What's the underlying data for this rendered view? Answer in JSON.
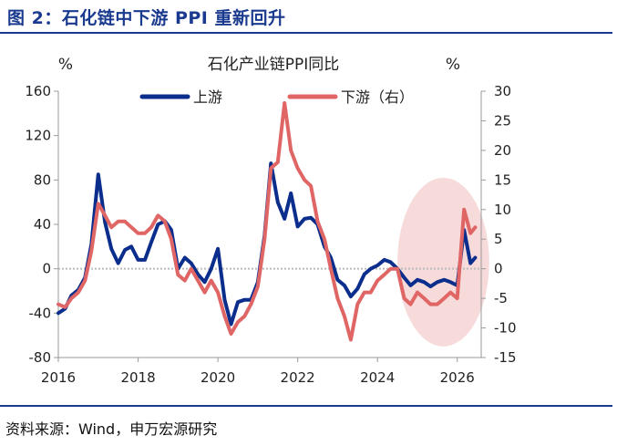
{
  "figure_title": "图 2：石化链中下游 PPI 重新回升",
  "source": "资料来源：Wind，申万宏源研究",
  "colors": {
    "upstream": "#0b2e8c",
    "downstream": "#e06666",
    "highlight": "#f6d5d5",
    "axis": "#999999",
    "text": "#222222",
    "title_blue": "#1a3a8f"
  },
  "chart_data": {
    "type": "line",
    "title": "石化产业链PPI同比",
    "y_left_unit": "%",
    "y_right_unit": "%",
    "y_left_range": [
      -80,
      160
    ],
    "y_left_ticks": [
      -80,
      -40,
      0,
      40,
      80,
      120,
      160
    ],
    "y_right_range": [
      -15,
      30
    ],
    "y_right_ticks": [
      -15,
      -10,
      -5,
      0,
      5,
      10,
      15,
      20,
      25,
      30
    ],
    "x_range": [
      2016,
      2026.6
    ],
    "x_ticks": [
      2016,
      2018,
      2020,
      2022,
      2024,
      2026
    ],
    "legend_position": "top",
    "highlight_region": {
      "x_start": 2024.5,
      "x_end": 2026.8,
      "y_left_start": -70,
      "y_left_end": 82
    },
    "series": [
      {
        "name": "上游",
        "axis": "left",
        "color": "#0b2e8c",
        "points": [
          [
            2016.0,
            -40
          ],
          [
            2016.17,
            -36
          ],
          [
            2016.33,
            -24
          ],
          [
            2016.5,
            -19
          ],
          [
            2016.67,
            -8
          ],
          [
            2016.83,
            22
          ],
          [
            2017.0,
            85
          ],
          [
            2017.17,
            42
          ],
          [
            2017.33,
            18
          ],
          [
            2017.5,
            5
          ],
          [
            2017.67,
            17
          ],
          [
            2017.83,
            20
          ],
          [
            2018.0,
            8
          ],
          [
            2018.17,
            8
          ],
          [
            2018.33,
            24
          ],
          [
            2018.5,
            40
          ],
          [
            2018.67,
            43
          ],
          [
            2018.83,
            35
          ],
          [
            2019.0,
            0
          ],
          [
            2019.17,
            10
          ],
          [
            2019.33,
            5
          ],
          [
            2019.5,
            -5
          ],
          [
            2019.67,
            -12
          ],
          [
            2019.83,
            0
          ],
          [
            2020.0,
            18
          ],
          [
            2020.17,
            -28
          ],
          [
            2020.33,
            -50
          ],
          [
            2020.5,
            -30
          ],
          [
            2020.67,
            -28
          ],
          [
            2020.83,
            -28
          ],
          [
            2021.0,
            -12
          ],
          [
            2021.17,
            30
          ],
          [
            2021.33,
            95
          ],
          [
            2021.5,
            60
          ],
          [
            2021.67,
            45
          ],
          [
            2021.83,
            68
          ],
          [
            2022.0,
            38
          ],
          [
            2022.17,
            45
          ],
          [
            2022.33,
            46
          ],
          [
            2022.5,
            40
          ],
          [
            2022.67,
            20
          ],
          [
            2022.83,
            10
          ],
          [
            2023.0,
            -10
          ],
          [
            2023.17,
            -15
          ],
          [
            2023.33,
            -25
          ],
          [
            2023.5,
            -18
          ],
          [
            2023.67,
            -5
          ],
          [
            2023.83,
            0
          ],
          [
            2024.0,
            3
          ],
          [
            2024.17,
            8
          ],
          [
            2024.33,
            6
          ],
          [
            2024.5,
            0
          ],
          [
            2024.67,
            -8
          ],
          [
            2024.83,
            -15
          ],
          [
            2025.0,
            -10
          ],
          [
            2025.17,
            -12
          ],
          [
            2025.33,
            -16
          ],
          [
            2025.5,
            -12
          ],
          [
            2025.67,
            -10
          ],
          [
            2025.83,
            -12
          ],
          [
            2026.0,
            -15
          ],
          [
            2026.17,
            35
          ],
          [
            2026.33,
            5
          ],
          [
            2026.45,
            10
          ]
        ]
      },
      {
        "name": "下游（右）",
        "axis": "right",
        "color": "#e06666",
        "points": [
          [
            2016.0,
            -6
          ],
          [
            2016.17,
            -6.5
          ],
          [
            2016.33,
            -5
          ],
          [
            2016.5,
            -4
          ],
          [
            2016.67,
            -2
          ],
          [
            2016.83,
            3
          ],
          [
            2017.0,
            11
          ],
          [
            2017.17,
            9
          ],
          [
            2017.33,
            7
          ],
          [
            2017.5,
            8
          ],
          [
            2017.67,
            8
          ],
          [
            2017.83,
            7
          ],
          [
            2018.0,
            6
          ],
          [
            2018.17,
            6
          ],
          [
            2018.33,
            7
          ],
          [
            2018.5,
            9
          ],
          [
            2018.67,
            8
          ],
          [
            2018.83,
            5
          ],
          [
            2019.0,
            -1
          ],
          [
            2019.17,
            -2
          ],
          [
            2019.33,
            0
          ],
          [
            2019.5,
            -2
          ],
          [
            2019.67,
            -4
          ],
          [
            2019.83,
            -2
          ],
          [
            2020.0,
            -4
          ],
          [
            2020.17,
            -8
          ],
          [
            2020.33,
            -11
          ],
          [
            2020.5,
            -9
          ],
          [
            2020.67,
            -8
          ],
          [
            2020.83,
            -6
          ],
          [
            2021.0,
            -3
          ],
          [
            2021.17,
            5
          ],
          [
            2021.33,
            17
          ],
          [
            2021.5,
            18
          ],
          [
            2021.67,
            28
          ],
          [
            2021.83,
            20
          ],
          [
            2022.0,
            17
          ],
          [
            2022.17,
            15
          ],
          [
            2022.33,
            14
          ],
          [
            2022.5,
            8
          ],
          [
            2022.67,
            5
          ],
          [
            2022.83,
            0
          ],
          [
            2023.0,
            -5
          ],
          [
            2023.17,
            -8
          ],
          [
            2023.33,
            -12
          ],
          [
            2023.5,
            -6
          ],
          [
            2023.67,
            -4
          ],
          [
            2023.83,
            -4
          ],
          [
            2024.0,
            -2
          ],
          [
            2024.17,
            -1
          ],
          [
            2024.33,
            0
          ],
          [
            2024.5,
            0
          ],
          [
            2024.67,
            -5
          ],
          [
            2024.83,
            -6
          ],
          [
            2025.0,
            -4
          ],
          [
            2025.17,
            -5
          ],
          [
            2025.33,
            -6
          ],
          [
            2025.5,
            -6
          ],
          [
            2025.67,
            -5
          ],
          [
            2025.83,
            -4
          ],
          [
            2026.0,
            -5
          ],
          [
            2026.17,
            10
          ],
          [
            2026.33,
            6
          ],
          [
            2026.45,
            7
          ]
        ]
      }
    ]
  }
}
